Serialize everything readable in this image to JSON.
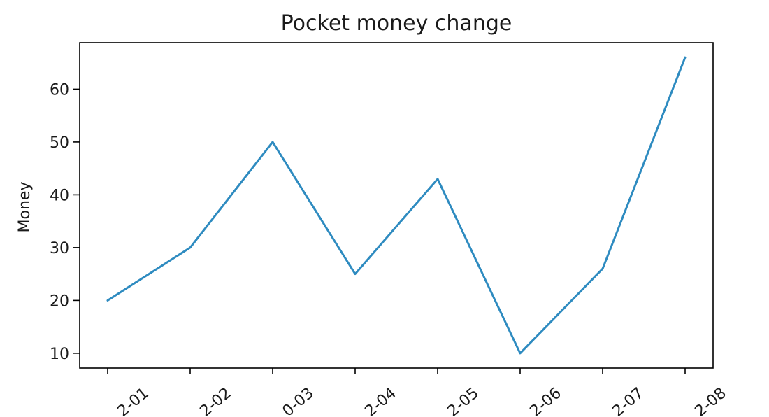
{
  "chart_data": {
    "type": "line",
    "title": "Pocket money change",
    "xlabel": "",
    "ylabel": "Money",
    "x": [
      "2-01",
      "2-02",
      "0-03",
      "2-04",
      "2-05",
      "2-06",
      "2-07",
      "2-08"
    ],
    "series": [
      {
        "values": [
          20,
          30,
          50,
          25,
          43,
          10,
          26,
          66
        ],
        "color": "#2e8bc0"
      }
    ],
    "ylim": [
      7.2,
      68.8
    ],
    "yticks": [
      10,
      20,
      30,
      40,
      50,
      60
    ],
    "grid": false,
    "legend": "none"
  }
}
